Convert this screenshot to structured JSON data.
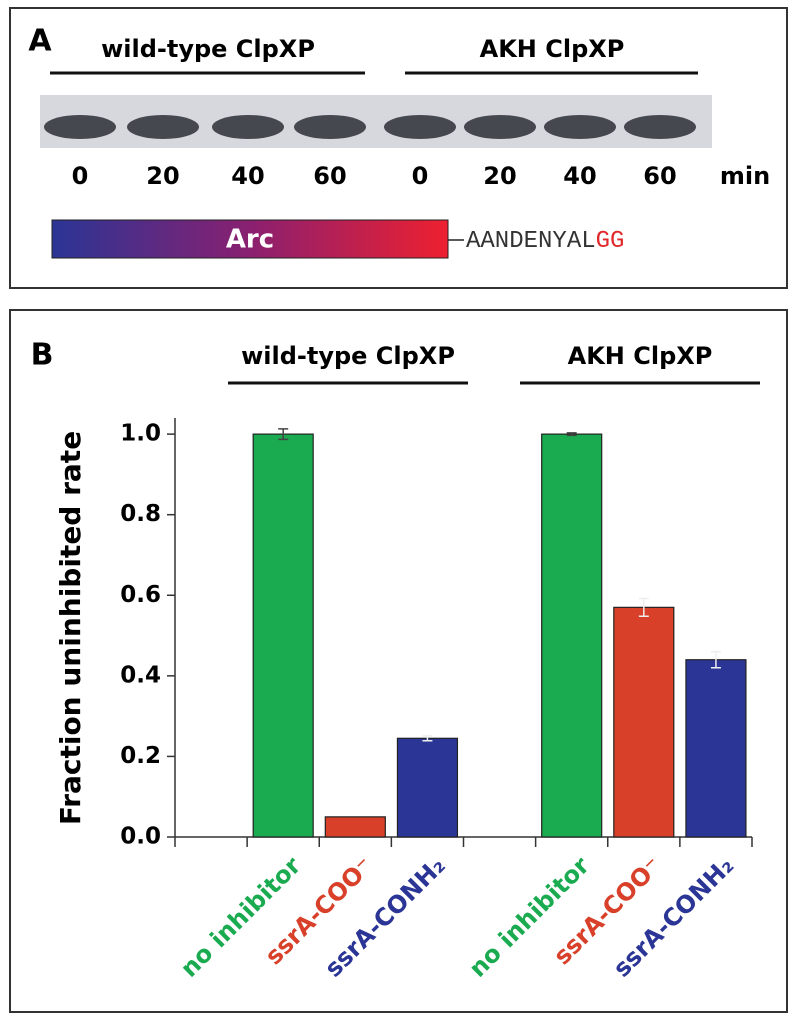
{
  "panel_a": {
    "label": "A",
    "groups": [
      "wild-type ClpXP",
      "AKH ClpXP"
    ],
    "lanes": [
      "0",
      "20",
      "40",
      "60",
      "0",
      "20",
      "40",
      "60"
    ],
    "unit": "min",
    "construct": "Arc",
    "sequence": "AANDENYAL",
    "sequence_tail": "GG"
  },
  "chart_data": {
    "type": "bar",
    "panel_label": "B",
    "groups": [
      "wild-type ClpXP",
      "AKH ClpXP"
    ],
    "ylabel": "Fraction uninhibited rate",
    "categories": [
      "no inhibitor",
      "ssrA-COO⁻",
      "ssrA-CONH₂",
      "no inhibitor",
      "ssrA-COO⁻",
      "ssrA-CONH₂"
    ],
    "values": [
      1.0,
      0.05,
      0.245,
      1.0,
      0.57,
      0.44
    ],
    "errors": [
      0.013,
      null,
      0.006,
      0.003,
      0.022,
      0.02
    ],
    "colors": [
      "#1aaa50",
      "#d8402a",
      "#2b3596",
      "#1aaa50",
      "#d8402a",
      "#2b3596"
    ],
    "ylim": [
      0,
      1.04
    ],
    "yticks": [
      {
        "value": 0,
        "label": "0.0"
      },
      0.2,
      0.4,
      0.6,
      0.8,
      {
        "value": 1,
        "label": "1.0"
      }
    ]
  }
}
